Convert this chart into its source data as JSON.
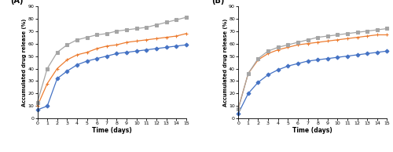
{
  "days": [
    0,
    1,
    2,
    3,
    4,
    5,
    6,
    7,
    8,
    9,
    10,
    11,
    12,
    13,
    14,
    15
  ],
  "A": {
    "a": [
      7,
      10,
      32,
      38,
      43,
      46,
      48,
      50,
      52,
      53,
      54,
      55,
      56,
      57,
      58,
      59
    ],
    "b": [
      10,
      28,
      40,
      47,
      51,
      53,
      56,
      58,
      59,
      61,
      62,
      63,
      64,
      65,
      66,
      68
    ],
    "c": [
      13,
      40,
      53,
      59,
      63,
      65,
      67,
      68,
      70,
      71,
      72,
      73,
      75,
      77,
      79,
      81
    ]
  },
  "B": {
    "d": [
      4,
      20,
      29,
      35,
      39,
      42,
      44,
      46,
      47,
      48,
      49,
      50,
      51,
      52,
      53,
      54
    ],
    "e": [
      8,
      36,
      47,
      52,
      55,
      57,
      59,
      60,
      61,
      62,
      63,
      64,
      65,
      66,
      67,
      67
    ],
    "f": [
      8,
      36,
      48,
      54,
      57,
      59,
      61,
      63,
      65,
      66,
      67,
      68,
      69,
      70,
      71,
      72
    ]
  },
  "color_a": "#4472c4",
  "color_b": "#ed7d31",
  "color_c": "#a5a5a5",
  "color_d": "#4472c4",
  "color_e": "#ed7d31",
  "color_f": "#a5a5a5",
  "marker_a": "D",
  "marker_b": "+",
  "marker_c": "s",
  "marker_d": "D",
  "marker_e": "+",
  "marker_f": "s",
  "ylabel": "Accumulated drug release (%)",
  "xlabel": "Time (days)",
  "ylim": [
    0,
    90
  ],
  "xlim": [
    0,
    15
  ],
  "yticks": [
    0,
    10,
    20,
    30,
    40,
    50,
    60,
    70,
    80,
    90
  ],
  "xticks": [
    0,
    1,
    2,
    3,
    4,
    5,
    6,
    7,
    8,
    9,
    10,
    11,
    12,
    13,
    14,
    15
  ],
  "label_A": "(A)",
  "label_B": "(B)"
}
